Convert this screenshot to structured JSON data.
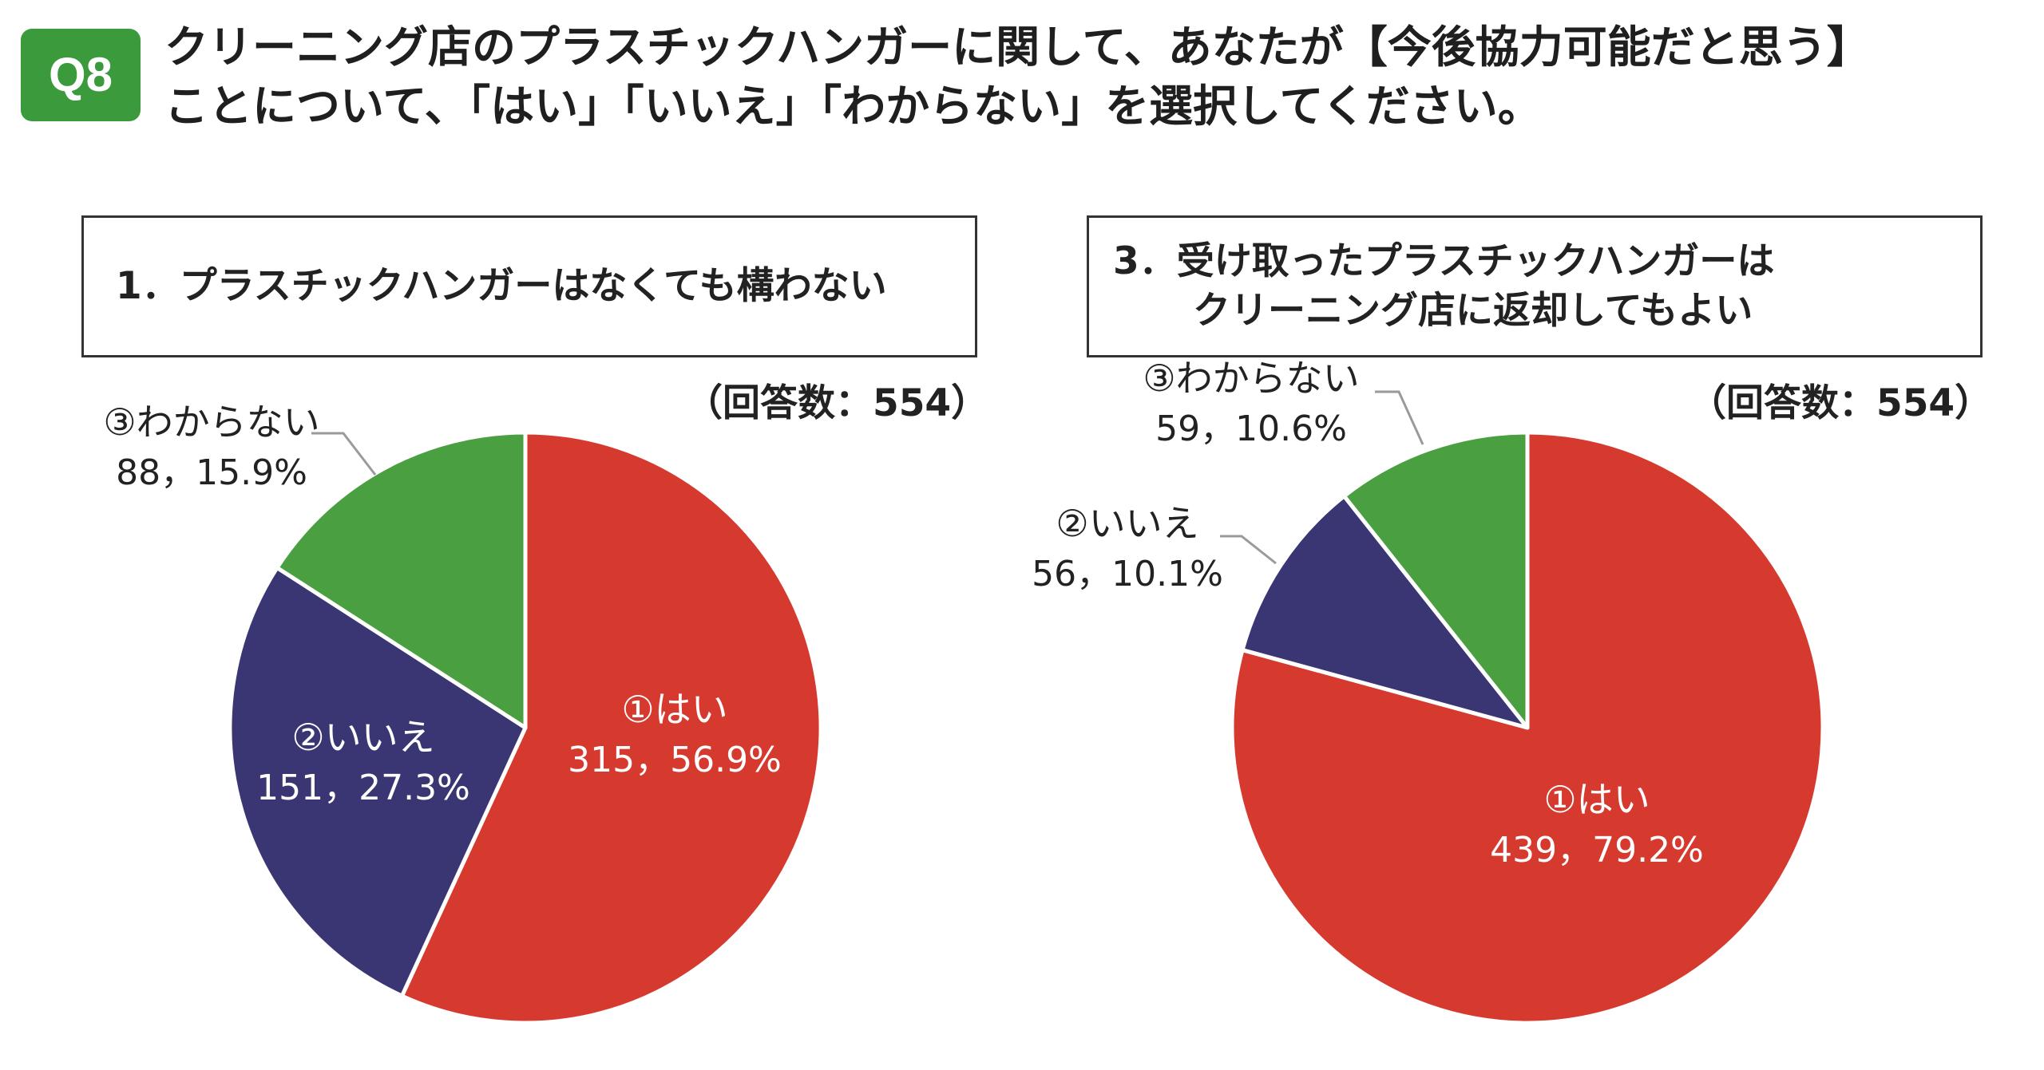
{
  "badge": "Q8",
  "question": {
    "line1": "クリーニング店のプラスチックハンガーに関して、あなたが【今後協力可能だと思う】",
    "line2": "ことについて、「はい」「いいえ」「わからない」を選択してください。"
  },
  "colors": {
    "yes": "#d63a2f",
    "no": "#3a3673",
    "unknown": "#4aa041",
    "badge": "#3a9a3c"
  },
  "chart_data": [
    {
      "type": "pie",
      "title_lines": [
        "1．プラスチックハンガーはなくても構わない"
      ],
      "respondents_label": "（回答数：554）",
      "slices": [
        {
          "label": "①はい",
          "value": 315,
          "percent": "56.9%",
          "value_text": "315，56.9%",
          "color": "#d63a2f"
        },
        {
          "label": "②いいえ",
          "value": 151,
          "percent": "27.3%",
          "value_text": "151，27.3%",
          "color": "#3a3673"
        },
        {
          "label": "③わからない",
          "value": 88,
          "percent": "15.9%",
          "value_text": "88，15.9%",
          "color": "#4aa041"
        }
      ]
    },
    {
      "type": "pie",
      "title_lines": [
        "3．受け取ったプラスチックハンガーは",
        "クリーニング店に返却してもよい"
      ],
      "respondents_label": "（回答数：554）",
      "slices": [
        {
          "label": "①はい",
          "value": 439,
          "percent": "79.2%",
          "value_text": "439，79.2%",
          "color": "#d63a2f"
        },
        {
          "label": "②いいえ",
          "value": 56,
          "percent": "10.1%",
          "value_text": "56，10.1%",
          "color": "#3a3673"
        },
        {
          "label": "③わからない",
          "value": 59,
          "percent": "10.6%",
          "value_text": "59，10.6%",
          "color": "#4aa041"
        }
      ]
    }
  ]
}
